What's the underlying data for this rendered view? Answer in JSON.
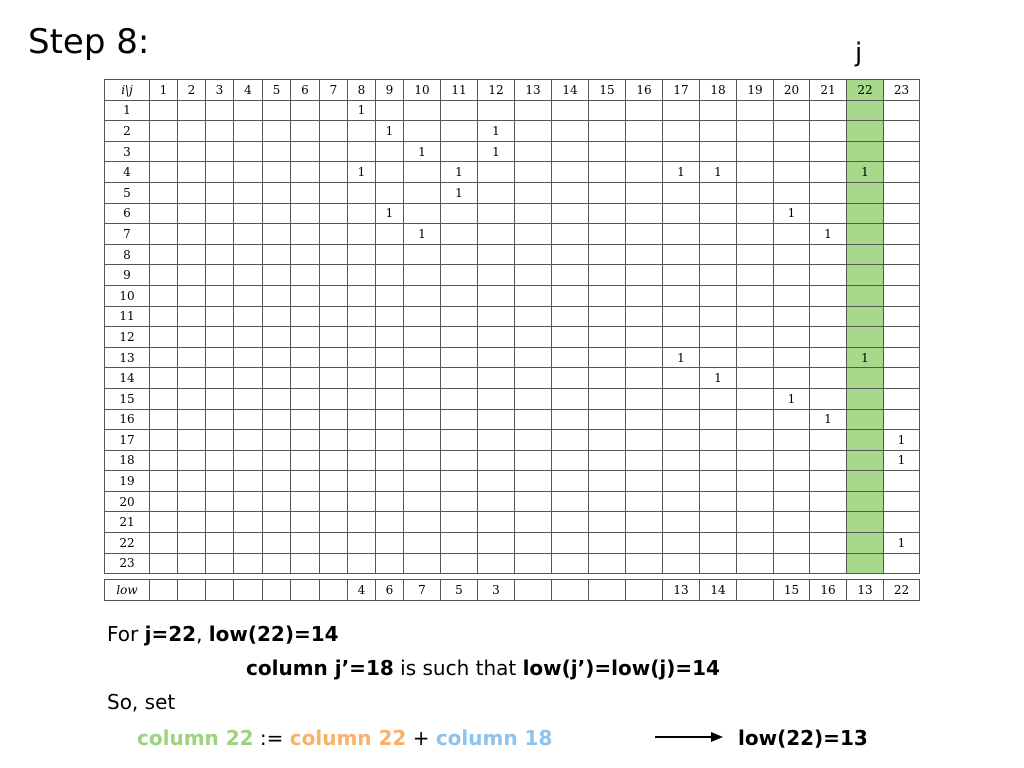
{
  "title": "Step 8:",
  "column_marker": "j",
  "highlight_column": 22,
  "highlight_color": "#a6d98a",
  "matrix": {
    "corner": "i\\j",
    "columns": [
      "1",
      "2",
      "3",
      "4",
      "5",
      "6",
      "7",
      "8",
      "9",
      "10",
      "11",
      "12",
      "13",
      "14",
      "15",
      "16",
      "17",
      "18",
      "19",
      "20",
      "21",
      "22",
      "23"
    ],
    "rows": [
      {
        "label": "1",
        "cells": [
          "",
          "",
          "",
          "",
          "",
          "",
          "",
          "1",
          "",
          "",
          "",
          "",
          "",
          "",
          "",
          "",
          "",
          "",
          "",
          "",
          "",
          "",
          ""
        ]
      },
      {
        "label": "2",
        "cells": [
          "",
          "",
          "",
          "",
          "",
          "",
          "",
          "",
          "1",
          "",
          "",
          "1",
          "",
          "",
          "",
          "",
          "",
          "",
          "",
          "",
          "",
          "",
          ""
        ]
      },
      {
        "label": "3",
        "cells": [
          "",
          "",
          "",
          "",
          "",
          "",
          "",
          "",
          "",
          "1",
          "",
          "1",
          "",
          "",
          "",
          "",
          "",
          "",
          "",
          "",
          "",
          "",
          ""
        ]
      },
      {
        "label": "4",
        "cells": [
          "",
          "",
          "",
          "",
          "",
          "",
          "",
          "1",
          "",
          "",
          "1",
          "",
          "",
          "",
          "",
          "",
          "1",
          "1",
          "",
          "",
          "",
          "1",
          ""
        ]
      },
      {
        "label": "5",
        "cells": [
          "",
          "",
          "",
          "",
          "",
          "",
          "",
          "",
          "",
          "",
          "1",
          "",
          "",
          "",
          "",
          "",
          "",
          "",
          "",
          "",
          "",
          "",
          ""
        ]
      },
      {
        "label": "6",
        "cells": [
          "",
          "",
          "",
          "",
          "",
          "",
          "",
          "",
          "1",
          "",
          "",
          "",
          "",
          "",
          "",
          "",
          "",
          "",
          "",
          "1",
          "",
          "",
          ""
        ]
      },
      {
        "label": "7",
        "cells": [
          "",
          "",
          "",
          "",
          "",
          "",
          "",
          "",
          "",
          "1",
          "",
          "",
          "",
          "",
          "",
          "",
          "",
          "",
          "",
          "",
          "1",
          "",
          ""
        ]
      },
      {
        "label": "8",
        "cells": [
          "",
          "",
          "",
          "",
          "",
          "",
          "",
          "",
          "",
          "",
          "",
          "",
          "",
          "",
          "",
          "",
          "",
          "",
          "",
          "",
          "",
          "",
          ""
        ]
      },
      {
        "label": "9",
        "cells": [
          "",
          "",
          "",
          "",
          "",
          "",
          "",
          "",
          "",
          "",
          "",
          "",
          "",
          "",
          "",
          "",
          "",
          "",
          "",
          "",
          "",
          "",
          ""
        ]
      },
      {
        "label": "10",
        "cells": [
          "",
          "",
          "",
          "",
          "",
          "",
          "",
          "",
          "",
          "",
          "",
          "",
          "",
          "",
          "",
          "",
          "",
          "",
          "",
          "",
          "",
          "",
          ""
        ]
      },
      {
        "label": "11",
        "cells": [
          "",
          "",
          "",
          "",
          "",
          "",
          "",
          "",
          "",
          "",
          "",
          "",
          "",
          "",
          "",
          "",
          "",
          "",
          "",
          "",
          "",
          "",
          ""
        ]
      },
      {
        "label": "12",
        "cells": [
          "",
          "",
          "",
          "",
          "",
          "",
          "",
          "",
          "",
          "",
          "",
          "",
          "",
          "",
          "",
          "",
          "",
          "",
          "",
          "",
          "",
          "",
          ""
        ]
      },
      {
        "label": "13",
        "cells": [
          "",
          "",
          "",
          "",
          "",
          "",
          "",
          "",
          "",
          "",
          "",
          "",
          "",
          "",
          "",
          "",
          "1",
          "",
          "",
          "",
          "",
          "1",
          ""
        ]
      },
      {
        "label": "14",
        "cells": [
          "",
          "",
          "",
          "",
          "",
          "",
          "",
          "",
          "",
          "",
          "",
          "",
          "",
          "",
          "",
          "",
          "",
          "1",
          "",
          "",
          "",
          "",
          ""
        ]
      },
      {
        "label": "15",
        "cells": [
          "",
          "",
          "",
          "",
          "",
          "",
          "",
          "",
          "",
          "",
          "",
          "",
          "",
          "",
          "",
          "",
          "",
          "",
          "",
          "1",
          "",
          "",
          ""
        ]
      },
      {
        "label": "16",
        "cells": [
          "",
          "",
          "",
          "",
          "",
          "",
          "",
          "",
          "",
          "",
          "",
          "",
          "",
          "",
          "",
          "",
          "",
          "",
          "",
          "",
          "1",
          "",
          ""
        ]
      },
      {
        "label": "17",
        "cells": [
          "",
          "",
          "",
          "",
          "",
          "",
          "",
          "",
          "",
          "",
          "",
          "",
          "",
          "",
          "",
          "",
          "",
          "",
          "",
          "",
          "",
          "",
          "1"
        ]
      },
      {
        "label": "18",
        "cells": [
          "",
          "",
          "",
          "",
          "",
          "",
          "",
          "",
          "",
          "",
          "",
          "",
          "",
          "",
          "",
          "",
          "",
          "",
          "",
          "",
          "",
          "",
          "1"
        ]
      },
      {
        "label": "19",
        "cells": [
          "",
          "",
          "",
          "",
          "",
          "",
          "",
          "",
          "",
          "",
          "",
          "",
          "",
          "",
          "",
          "",
          "",
          "",
          "",
          "",
          "",
          "",
          ""
        ]
      },
      {
        "label": "20",
        "cells": [
          "",
          "",
          "",
          "",
          "",
          "",
          "",
          "",
          "",
          "",
          "",
          "",
          "",
          "",
          "",
          "",
          "",
          "",
          "",
          "",
          "",
          "",
          ""
        ]
      },
      {
        "label": "21",
        "cells": [
          "",
          "",
          "",
          "",
          "",
          "",
          "",
          "",
          "",
          "",
          "",
          "",
          "",
          "",
          "",
          "",
          "",
          "",
          "",
          "",
          "",
          "",
          ""
        ]
      },
      {
        "label": "22",
        "cells": [
          "",
          "",
          "",
          "",
          "",
          "",
          "",
          "",
          "",
          "",
          "",
          "",
          "",
          "",
          "",
          "",
          "",
          "",
          "",
          "",
          "",
          "",
          "1"
        ]
      },
      {
        "label": "23",
        "cells": [
          "",
          "",
          "",
          "",
          "",
          "",
          "",
          "",
          "",
          "",
          "",
          "",
          "",
          "",
          "",
          "",
          "",
          "",
          "",
          "",
          "",
          "",
          ""
        ]
      }
    ]
  },
  "low_row": {
    "label": "low",
    "cells": [
      "",
      "",
      "",
      "",
      "",
      "",
      "",
      "4",
      "6",
      "7",
      "5",
      "3",
      "",
      "",
      "",
      "",
      "13",
      "14",
      "",
      "15",
      "16",
      "13",
      "22"
    ]
  },
  "explanation": {
    "line1_prefix": "For ",
    "line1_j": "j=22",
    "line1_sep": ", ",
    "line1_low": "low(22)=14",
    "line2_a": "column j’=18",
    "line2_b": " is such that ",
    "line2_c": "low(j’)=low(j)=14",
    "line3": "So, set",
    "line4_a": "column 22",
    "line4_b": " := ",
    "line4_c": "column 22",
    "line4_d": " + ",
    "line4_e": "column 18",
    "line4_result": "low(22)=13"
  }
}
